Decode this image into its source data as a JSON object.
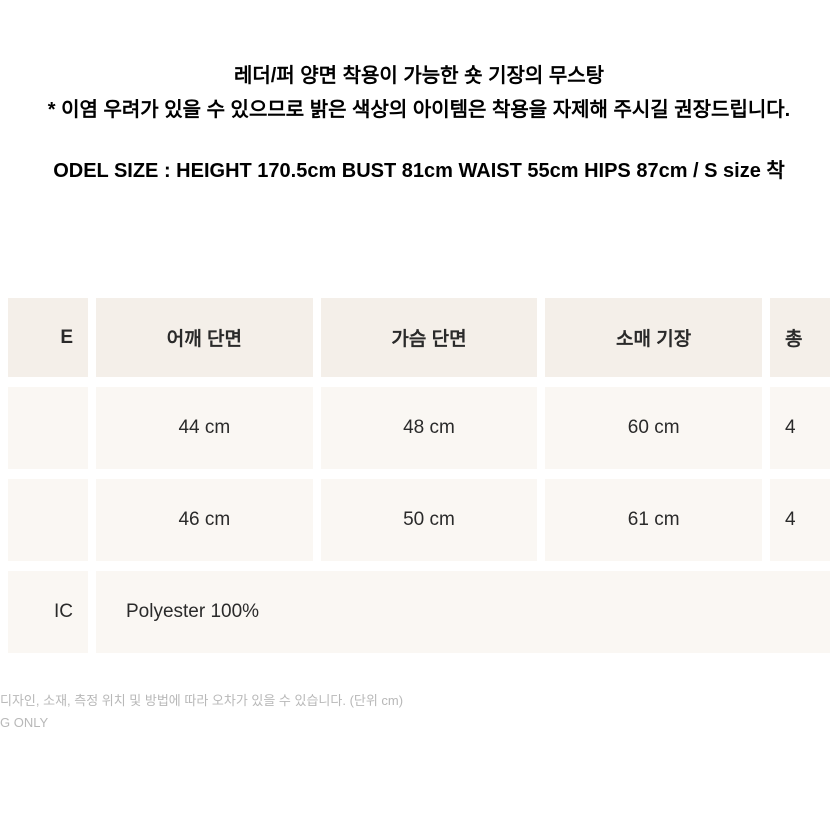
{
  "header": {
    "desc_line1": "레더/퍼 양면 착용이 가능한 숏 기장의 무스탕",
    "desc_line2": "* 이염 우려가 있을 수 있으므로 밝은 색상의 아이템은 착용을 자제해 주시길 권장드립니다.",
    "model_size": "ODEL SIZE : HEIGHT 170.5cm BUST 81cm WAIST 55cm HIPS 87cm / S size 착"
  },
  "table": {
    "headers": {
      "col0": "E",
      "col1": "어깨 단면",
      "col2": "가슴 단면",
      "col3": "소매 기장",
      "col4": "총"
    },
    "rows": [
      {
        "col0": "",
        "col1": "44 cm",
        "col2": "48 cm",
        "col3": "60 cm",
        "col4": "4"
      },
      {
        "col0": "",
        "col1": "46 cm",
        "col2": "50 cm",
        "col3": "61 cm",
        "col4": "4"
      }
    ],
    "fabric": {
      "label": "IC",
      "value": "Polyester 100%"
    }
  },
  "footer": {
    "line1": "디자인, 소재, 측정 위치 및 방법에 따라 오차가 있을 수 있습니다. (단위 cm)",
    "line2": "G ONLY"
  },
  "styles": {
    "background": "#ffffff",
    "header_cell_bg": "#f4efe9",
    "data_cell_bg": "#faf7f3",
    "text_color": "#2a2a2a",
    "footer_color": "#b8b8b8",
    "border_spacing_h": 8,
    "border_spacing_v": 10,
    "header_fontsize": 19,
    "data_fontsize": 19,
    "desc_fontsize": 20,
    "footer_fontsize": 13
  }
}
